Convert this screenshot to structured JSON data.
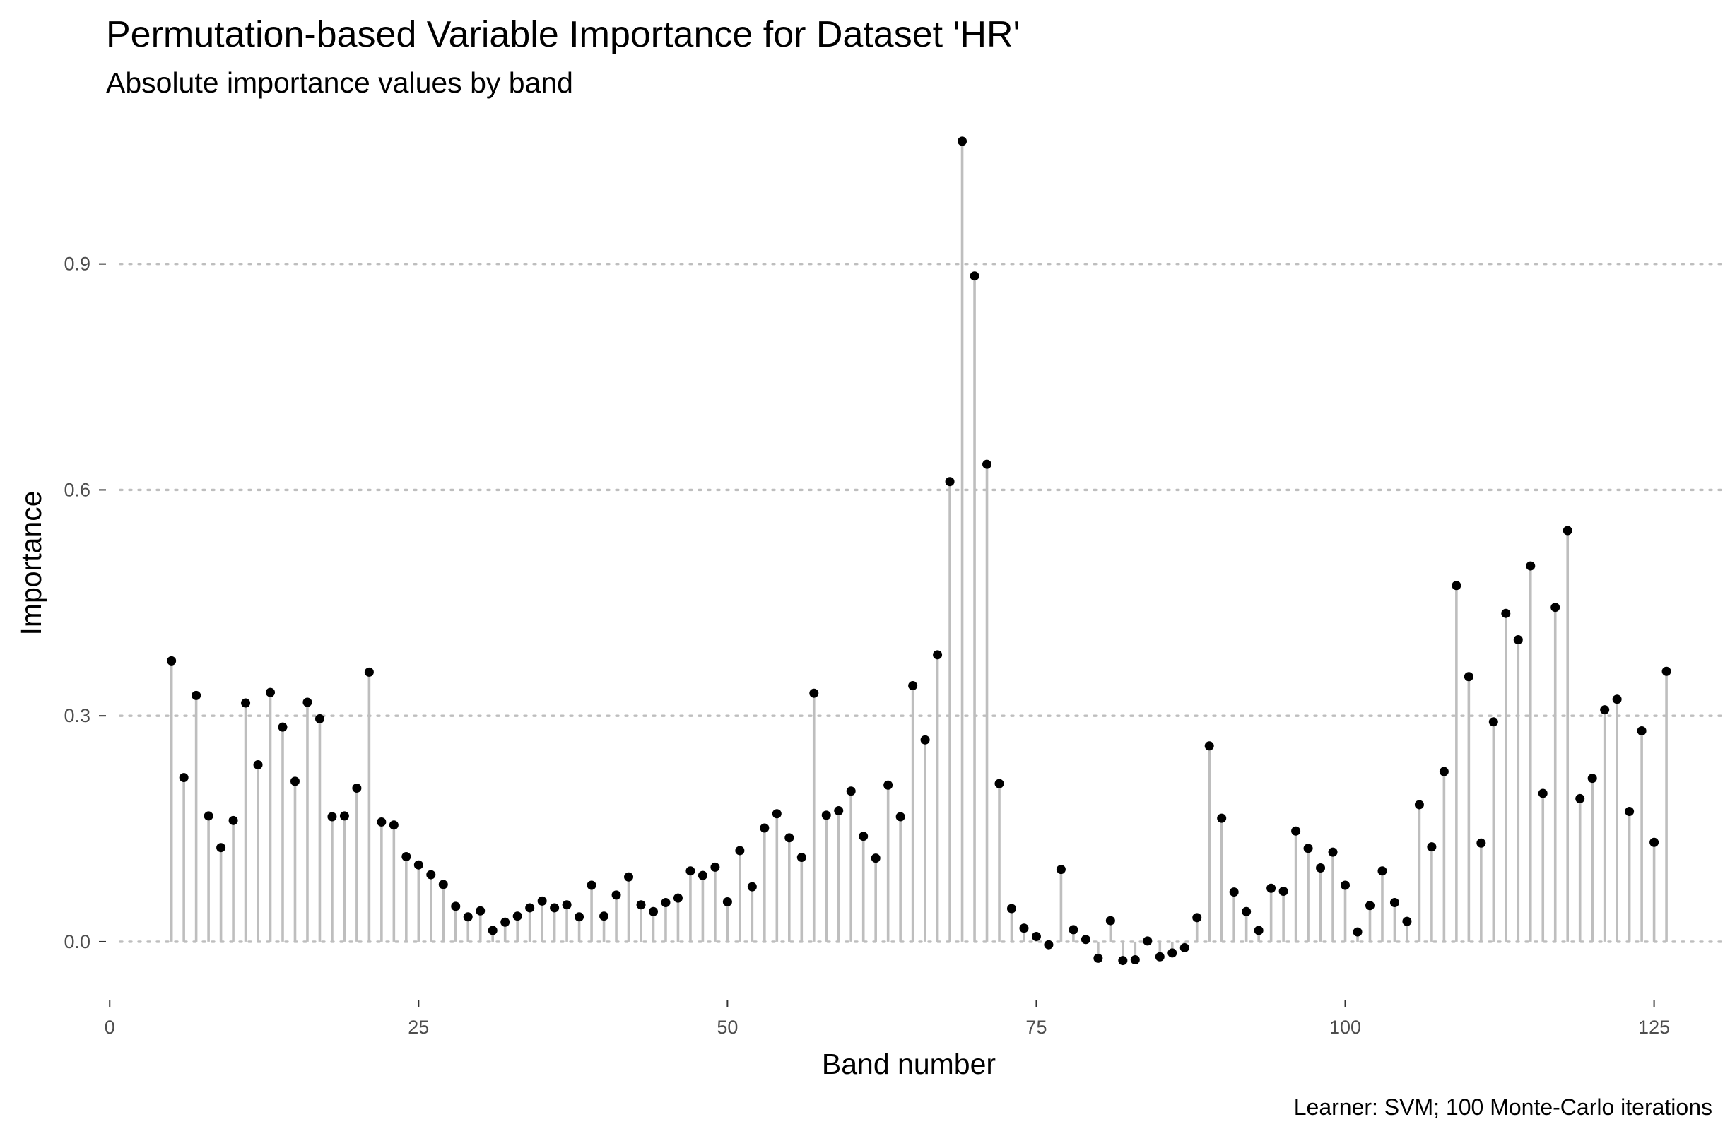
{
  "chart_data": {
    "type": "lollipop",
    "title": "Permutation-based Variable Importance for Dataset 'HR'",
    "subtitle": "Absolute importance values by band",
    "caption": "Learner: SVM; 100 Monte-Carlo iterations",
    "xlabel": "Band number",
    "ylabel": "Importance",
    "xlim": [
      -0.3,
      130.4
    ],
    "ylim": [
      -0.077,
      1.077
    ],
    "x_ticks": [
      0,
      25,
      50,
      75,
      100,
      125
    ],
    "y_ticks": [
      0.0,
      0.3,
      0.6,
      0.9
    ],
    "y_tick_labels": [
      "0.0",
      "0.3",
      "0.6",
      "0.9"
    ],
    "grid": "horizontal dotted at y ticks",
    "colors": {
      "stem": "#bebebe",
      "point": "#000000",
      "grid": "#bebebe",
      "tick": "#4d4d4d"
    },
    "x": [
      5,
      6,
      7,
      8,
      9,
      10,
      11,
      12,
      13,
      14,
      15,
      16,
      17,
      18,
      19,
      20,
      21,
      22,
      23,
      24,
      25,
      26,
      27,
      28,
      29,
      30,
      31,
      32,
      33,
      34,
      35,
      36,
      37,
      38,
      39,
      40,
      41,
      42,
      43,
      44,
      45,
      46,
      47,
      48,
      49,
      50,
      51,
      52,
      53,
      54,
      55,
      56,
      57,
      58,
      59,
      60,
      61,
      62,
      63,
      64,
      65,
      66,
      67,
      68,
      69,
      70,
      71,
      72,
      73,
      74,
      75,
      76,
      77,
      78,
      79,
      80,
      81,
      82,
      83,
      84,
      85,
      86,
      87,
      88,
      89,
      90,
      91,
      92,
      93,
      94,
      95,
      96,
      97,
      98,
      99,
      100,
      101,
      102,
      103,
      104,
      105,
      106,
      107,
      108,
      109,
      110,
      111,
      112,
      113,
      114,
      115,
      116,
      117,
      118,
      119,
      120,
      121,
      122,
      123,
      124,
      125,
      126
    ],
    "y": [
      0.373,
      0.218,
      0.327,
      0.167,
      0.125,
      0.161,
      0.317,
      0.235,
      0.331,
      0.285,
      0.213,
      0.318,
      0.296,
      0.166,
      0.167,
      0.204,
      0.358,
      0.159,
      0.155,
      0.113,
      0.102,
      0.089,
      0.076,
      0.047,
      0.033,
      0.041,
      0.015,
      0.026,
      0.034,
      0.045,
      0.054,
      0.045,
      0.049,
      0.033,
      0.075,
      0.034,
      0.062,
      0.086,
      0.049,
      0.04,
      0.052,
      0.058,
      0.094,
      0.088,
      0.099,
      0.053,
      0.121,
      0.073,
      0.151,
      0.17,
      0.138,
      0.112,
      0.33,
      0.168,
      0.174,
      0.2,
      0.14,
      0.111,
      0.208,
      0.166,
      0.34,
      0.268,
      0.381,
      0.611,
      1.063,
      0.884,
      0.634,
      0.21,
      0.044,
      0.018,
      0.007,
      -0.004,
      0.096,
      0.016,
      0.003,
      -0.022,
      0.028,
      -0.025,
      -0.024,
      0.001,
      -0.02,
      -0.015,
      -0.008,
      0.032,
      0.26,
      0.164,
      0.066,
      0.04,
      0.015,
      0.071,
      0.067,
      0.147,
      0.124,
      0.098,
      0.119,
      0.075,
      0.013,
      0.048,
      0.094,
      0.052,
      0.027,
      0.182,
      0.126,
      0.226,
      0.473,
      0.352,
      0.131,
      0.292,
      0.436,
      0.401,
      0.499,
      0.197,
      0.444,
      0.546,
      0.19,
      0.217,
      0.308,
      0.322,
      0.173,
      0.28,
      0.132,
      0.359
    ]
  }
}
